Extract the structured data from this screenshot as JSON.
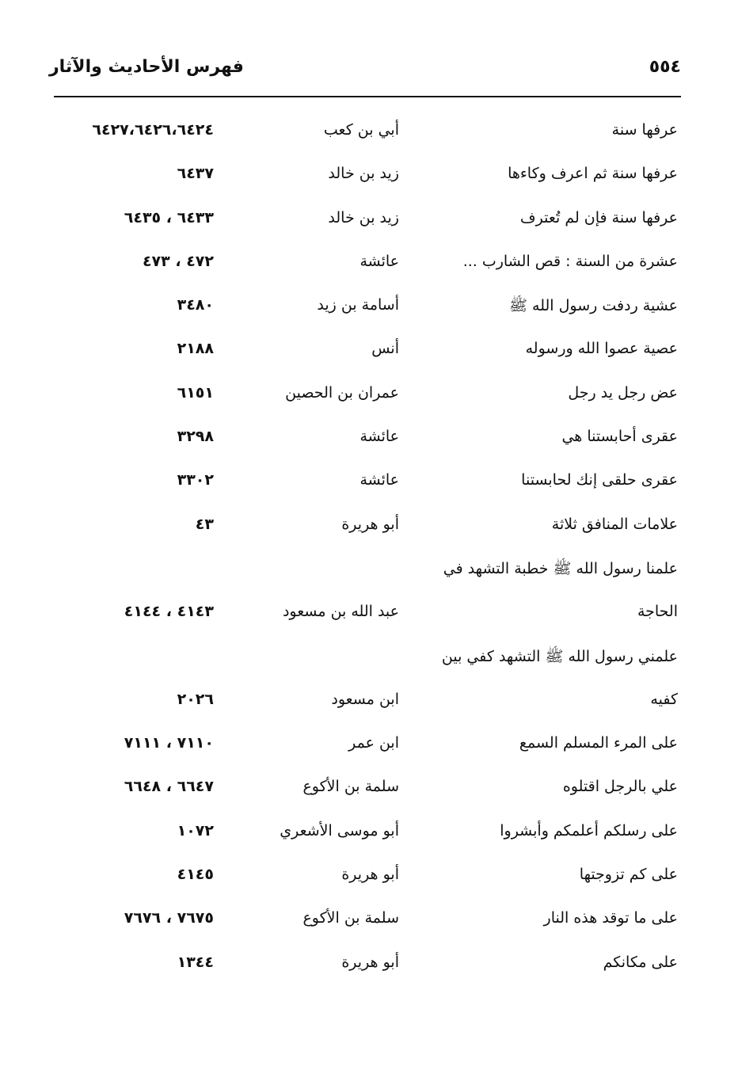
{
  "header": {
    "title": "فهرس الأحاديث والآثار",
    "page_number": "٥٥٤"
  },
  "rows": [
    {
      "text": "عرفها سنة",
      "narrator": "أبي بن كعب",
      "refs": "٦٤٢٧،٦٤٢٦،٦٤٢٤"
    },
    {
      "text": "عرفها سنة ثم اعرف وكاءها",
      "narrator": "زيد بن خالد",
      "refs": "٦٤٣٧"
    },
    {
      "text": "عرفها سنة فإن لم تُعترف",
      "narrator": "زيد بن خالد",
      "refs": "٦٤٣٣ ، ٦٤٣٥"
    },
    {
      "text": "عشرة من السنة : قص الشارب ...",
      "narrator": "عائشة",
      "refs": "٤٧٢ ، ٤٧٣"
    },
    {
      "text": "عشية ردفت رسول الله ﷺ",
      "narrator": "أسامة بن زيد",
      "refs": "٣٤٨٠"
    },
    {
      "text": "عصية عصوا الله ورسوله",
      "narrator": "أنس",
      "refs": "٢١٨٨"
    },
    {
      "text": "عض رجل يد رجل",
      "narrator": "عمران بن الحصين",
      "refs": "٦١٥١"
    },
    {
      "text": "عقرى أحابستنا هي",
      "narrator": "عائشة",
      "refs": "٣٢٩٨"
    },
    {
      "text": "عقرى حلقى إنك لحابستنا",
      "narrator": "عائشة",
      "refs": "٣٣٠٢"
    },
    {
      "text": "علامات المنافق ثلاثة",
      "narrator": "أبو هريرة",
      "refs": "٤٣"
    },
    {
      "text": "علمنا رسول الله ﷺ خطبة التشهد في",
      "narrator": "",
      "refs": ""
    },
    {
      "text": "الحاجة",
      "narrator": "عبد الله بن مسعود",
      "refs": "٤١٤٣ ، ٤١٤٤"
    },
    {
      "text": "علمني رسول الله ﷺ التشهد كفي بين",
      "narrator": "",
      "refs": ""
    },
    {
      "text": "كفيه",
      "narrator": "ابن مسعود",
      "refs": "٢٠٢٦"
    },
    {
      "text": "على المرء المسلم السمع",
      "narrator": "ابن عمر",
      "refs": "٧١١٠ ، ٧١١١"
    },
    {
      "text": "علي بالرجل اقتلوه",
      "narrator": "سلمة بن الأكوع",
      "refs": "٦٦٤٧ ، ٦٦٤٨"
    },
    {
      "text": "على رسلكم أعلمكم وأبشروا",
      "narrator": "أبو موسى الأشعري",
      "refs": "١٠٧٢"
    },
    {
      "text": "على كم تزوجتها",
      "narrator": "أبو هريرة",
      "refs": "٤١٤٥"
    },
    {
      "text": "على ما توقد هذه النار",
      "narrator": "سلمة بن الأكوع",
      "refs": "٧٦٧٥ ، ٧٦٧٦"
    },
    {
      "text": "على مكانكم",
      "narrator": "أبو هريرة",
      "refs": "١٣٤٤"
    }
  ]
}
